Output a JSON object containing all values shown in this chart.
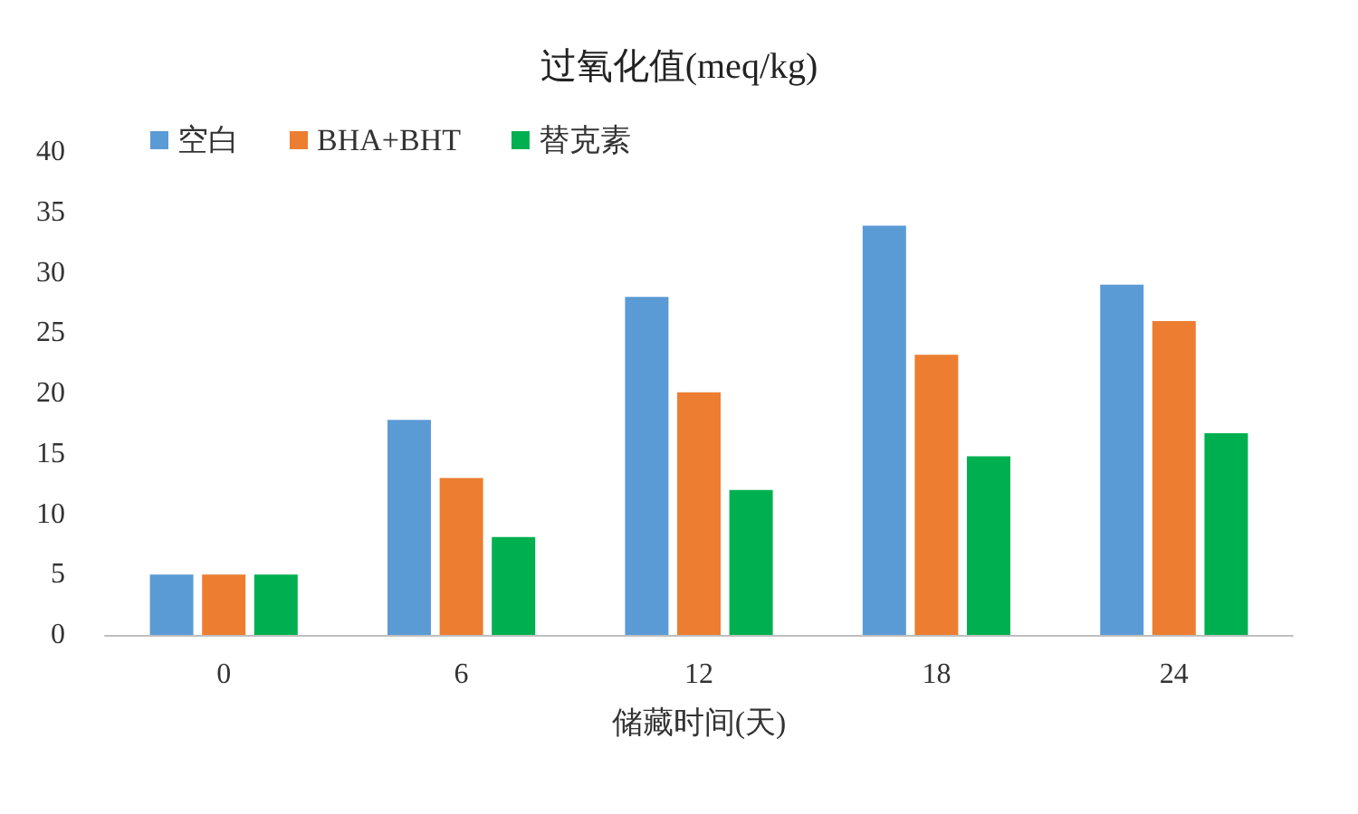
{
  "chart_data": {
    "type": "bar",
    "title": "过氧化值(meq/kg)",
    "xlabel": "储藏时间(天)",
    "categories": [
      "0",
      "6",
      "12",
      "18",
      "24"
    ],
    "series": [
      {
        "name": "空白",
        "color": "#5b9bd5",
        "values": [
          5,
          17.8,
          28,
          33.9,
          29
        ]
      },
      {
        "name": "BHA+BHT",
        "color": "#ed7d31",
        "values": [
          5,
          13,
          20.1,
          23.2,
          26
        ]
      },
      {
        "name": "替克素",
        "color": "#00b050",
        "values": [
          5,
          8.1,
          12,
          14.8,
          16.7
        ]
      }
    ],
    "ylim": [
      0,
      40
    ],
    "yticks": [
      0,
      5,
      10,
      15,
      20,
      25,
      30,
      35,
      40
    ],
    "grid": false,
    "legend": "top left"
  }
}
